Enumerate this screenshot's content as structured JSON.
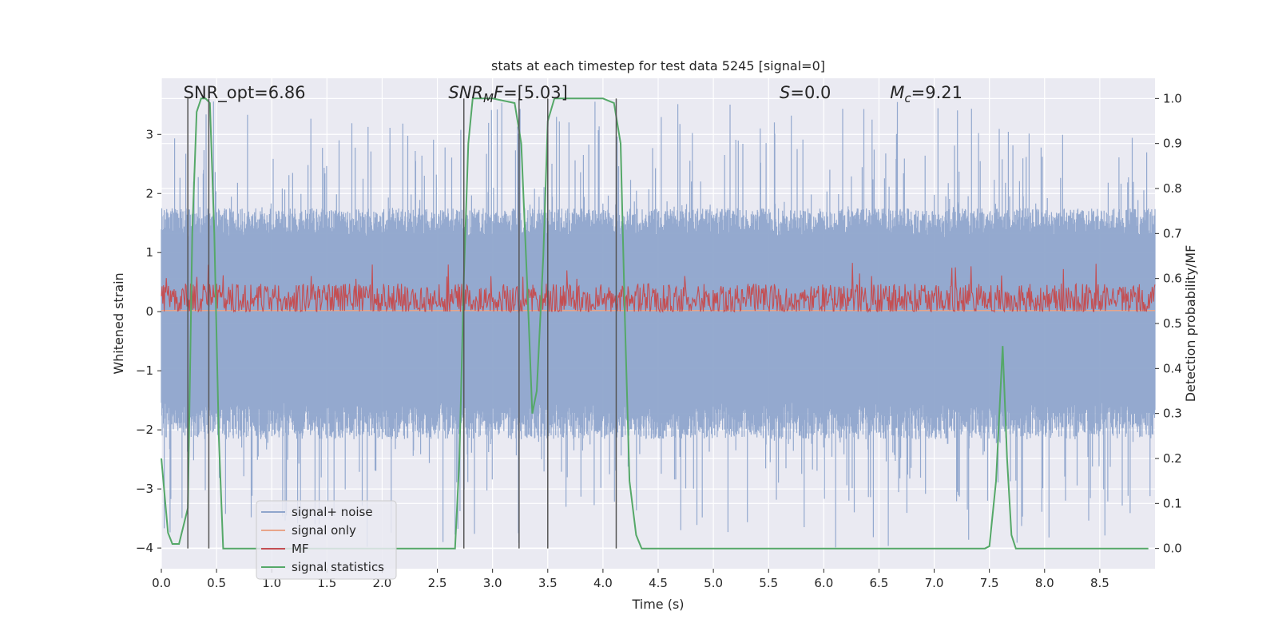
{
  "chart_data": {
    "type": "line",
    "title": "stats at each timestep for test data 5245 [signal=0]",
    "xlabel": "Time (s)",
    "ylabel_left": "Whitened strain",
    "ylabel_right": "Detection probability/MF",
    "xlim": [
      0,
      9.0
    ],
    "ylim_left": [
      -4.35,
      3.95
    ],
    "ylim_right": [
      -0.045,
      1.045
    ],
    "x_ticks": [
      "0.0",
      "0.5",
      "1.0",
      "1.5",
      "2.0",
      "2.5",
      "3.0",
      "3.5",
      "4.0",
      "4.5",
      "5.0",
      "5.5",
      "6.0",
      "6.5",
      "7.0",
      "7.5",
      "8.0",
      "8.5"
    ],
    "y_ticks_left": [
      "−4",
      "−3",
      "−2",
      "−1",
      "0",
      "1",
      "2",
      "3"
    ],
    "y_ticks_right": [
      "0.0",
      "0.1",
      "0.2",
      "0.3",
      "0.4",
      "0.5",
      "0.6",
      "0.7",
      "0.8",
      "0.9",
      "1.0"
    ],
    "grid": true,
    "legend_position": "lower-left",
    "annotations": [
      {
        "text": "SNR_opt=6.86",
        "x": 0.2
      },
      {
        "text": "SNR_MF=[5.03]",
        "x": 2.6
      },
      {
        "text": "S=0.0",
        "x": 5.6
      },
      {
        "text": "M_c=9.21",
        "x": 6.6
      }
    ],
    "series": [
      {
        "name": "signal+ noise",
        "axis": "left",
        "color": "#8fa5cc",
        "envelope_upper": 1.4,
        "envelope_lower": -1.8,
        "spike_max": 3.6,
        "spike_min": -4.0
      },
      {
        "name": "signal only",
        "axis": "left",
        "color": "#e8a58a",
        "value": 0.02
      },
      {
        "name": "MF",
        "axis": "left",
        "color": "#c44e52",
        "mean": 0.2,
        "band_min": 0.0,
        "band_max": 0.55,
        "peak": 0.85
      },
      {
        "name": "signal statistics",
        "axis": "right",
        "color": "#55a868",
        "x": [
          0.0,
          0.06,
          0.1,
          0.16,
          0.24,
          0.28,
          0.32,
          0.36,
          0.4,
          0.44,
          0.48,
          0.52,
          0.56,
          0.6,
          1.0,
          2.0,
          2.66,
          2.7,
          2.74,
          2.78,
          2.82,
          2.86,
          2.9,
          3.0,
          3.2,
          3.26,
          3.32,
          3.36,
          3.4,
          3.46,
          3.5,
          3.56,
          3.6,
          4.0,
          4.1,
          4.16,
          4.2,
          4.24,
          4.3,
          4.35,
          4.4,
          5.0,
          6.0,
          7.0,
          7.46,
          7.5,
          7.56,
          7.62,
          7.66,
          7.7,
          7.74,
          7.8,
          8.0,
          8.5,
          8.94
        ],
        "y": [
          0.2,
          0.035,
          0.01,
          0.01,
          0.09,
          0.7,
          0.97,
          1.0,
          1.0,
          0.99,
          0.7,
          0.25,
          0.0,
          0.0,
          0.0,
          0.0,
          0.0,
          0.2,
          0.6,
          0.9,
          1.0,
          1.0,
          1.0,
          1.0,
          0.99,
          0.9,
          0.55,
          0.3,
          0.35,
          0.65,
          0.95,
          1.0,
          1.0,
          1.0,
          0.99,
          0.9,
          0.5,
          0.15,
          0.03,
          0.0,
          0.0,
          0.0,
          0.0,
          0.0,
          0.0,
          0.005,
          0.15,
          0.45,
          0.2,
          0.03,
          0.0,
          0.0,
          0.0,
          0.0,
          0.0
        ]
      }
    ],
    "vertical_lines": [
      0.24,
      0.43,
      2.74,
      3.24,
      3.5,
      4.12
    ]
  }
}
